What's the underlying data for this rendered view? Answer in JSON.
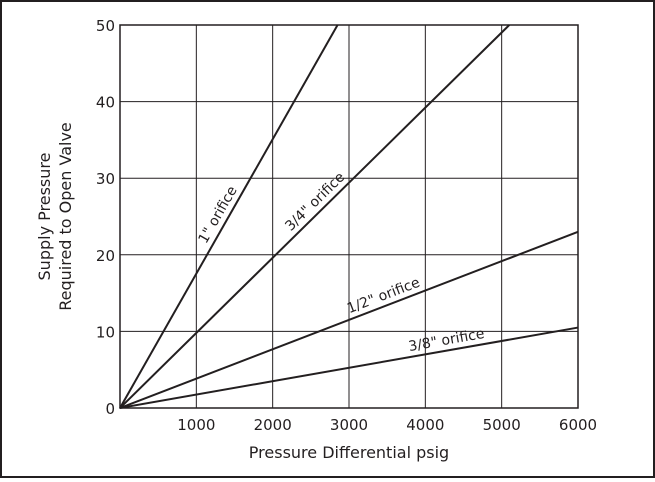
{
  "chart_data": {
    "type": "line",
    "title": "",
    "xlabel": "Pressure Differential psig",
    "ylabel": [
      "Supply Pressure",
      "Required to Open Valve"
    ],
    "xlim": [
      0,
      6000
    ],
    "ylim": [
      0,
      50
    ],
    "x_ticks": [
      1000,
      2000,
      3000,
      4000,
      5000,
      6000
    ],
    "y_ticks": [
      0,
      10,
      20,
      30,
      40,
      50
    ],
    "grid": true,
    "legend": "none",
    "line_color": "#231f20",
    "series": [
      {
        "name": "1\" orifice",
        "x": [
          0,
          2850
        ],
        "y": [
          0,
          50
        ]
      },
      {
        "name": "3/4\" orifice",
        "x": [
          0,
          5100
        ],
        "y": [
          0,
          50
        ]
      },
      {
        "name": "1/2\" orifice",
        "x": [
          0,
          6000
        ],
        "y": [
          0,
          23
        ]
      },
      {
        "name": "3/8\" orifice",
        "x": [
          0,
          6000
        ],
        "y": [
          0,
          10.5
        ]
      }
    ]
  }
}
